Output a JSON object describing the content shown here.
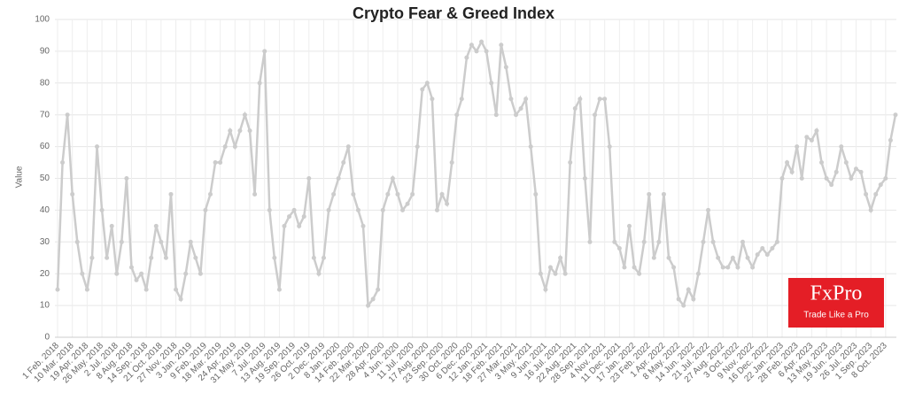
{
  "chart_data": {
    "type": "line",
    "title": "Crypto Fear & Greed Index",
    "y_label": "Value",
    "categories": [
      "1 Feb. 2018",
      null,
      null,
      "10 Mar. 2018",
      null,
      null,
      "19 Apr. 2018",
      null,
      null,
      "26 May. 2018",
      null,
      null,
      "2 Jul. 2018",
      null,
      null,
      "8 Aug. 2018",
      null,
      null,
      "14 Sep. 2018",
      null,
      null,
      "21 Oct. 2018",
      null,
      null,
      "27 Nov. 2018",
      null,
      null,
      "3 Jan. 2019",
      null,
      null,
      "9 Feb. 2019",
      null,
      null,
      "18 Mar. 2019",
      null,
      null,
      "24 Apr. 2019",
      null,
      null,
      "31 May. 2019",
      null,
      null,
      "7 Jul. 2019",
      null,
      null,
      "13 Aug. 2019",
      null,
      null,
      "19 Sep. 2019",
      null,
      null,
      "26 Oct. 2019",
      null,
      null,
      "2 Dec. 2019",
      null,
      null,
      "8 Jan. 2020",
      null,
      null,
      "14 Feb. 2020",
      null,
      null,
      "22 Mar. 2020",
      null,
      null,
      "28 Apr. 2020",
      null,
      null,
      "4 Jun. 2020",
      null,
      null,
      "11 Jul. 2020",
      null,
      null,
      "17 Aug. 2020",
      null,
      null,
      "23 Sep. 2020",
      null,
      null,
      "30 Oct. 2020",
      null,
      null,
      "6 Dec. 2020",
      null,
      null,
      "12 Jan. 2021",
      null,
      null,
      "18 Feb. 2021",
      null,
      null,
      "27 Mar. 2021",
      null,
      null,
      "3 May. 2021",
      null,
      null,
      "9 Jun. 2021",
      null,
      null,
      "16 Jul. 2021",
      null,
      null,
      "22 Aug. 2021",
      null,
      null,
      "28 Sep. 2021",
      null,
      null,
      "4 Nov. 2021",
      null,
      null,
      "11 Dec. 2021",
      null,
      null,
      "17 Jan. 2022",
      null,
      null,
      "23 Feb. 2022",
      null,
      null,
      "1 Apr. 2022",
      null,
      null,
      "8 May. 2022",
      null,
      null,
      "14 Jun. 2022",
      null,
      null,
      "21 Jul. 2022",
      null,
      null,
      "27 Aug. 2022",
      null,
      null,
      "3 Oct. 2022",
      null,
      null,
      "9 Nov. 2022",
      null,
      null,
      "16 Dec. 2022",
      null,
      null,
      "22 Jan. 2023",
      null,
      null,
      "28 Feb. 2023",
      null,
      null,
      "6 Apr. 2023",
      null,
      null,
      "13 May. 2023",
      null,
      null,
      "19 Jun. 2023",
      null,
      null,
      "26 Jul. 2023",
      null,
      null,
      "1 Sep. 2023",
      null,
      null,
      "8 Oct. 2023",
      null,
      null
    ],
    "values": [
      15,
      55,
      70,
      45,
      30,
      20,
      15,
      25,
      60,
      40,
      25,
      35,
      20,
      30,
      50,
      22,
      18,
      20,
      15,
      25,
      35,
      30,
      25,
      45,
      15,
      12,
      20,
      30,
      25,
      20,
      40,
      45,
      55,
      55,
      60,
      65,
      60,
      65,
      70,
      65,
      45,
      80,
      90,
      40,
      25,
      15,
      35,
      38,
      40,
      35,
      38,
      50,
      25,
      20,
      25,
      40,
      45,
      50,
      55,
      60,
      45,
      40,
      35,
      10,
      12,
      15,
      40,
      45,
      50,
      45,
      40,
      42,
      45,
      60,
      78,
      80,
      75,
      40,
      45,
      42,
      55,
      70,
      75,
      88,
      92,
      90,
      93,
      90,
      80,
      70,
      92,
      85,
      75,
      70,
      72,
      75,
      60,
      45,
      20,
      15,
      22,
      20,
      25,
      20,
      55,
      72,
      75,
      50,
      30,
      70,
      75,
      75,
      60,
      30,
      28,
      22,
      35,
      22,
      20,
      30,
      45,
      25,
      30,
      45,
      25,
      22,
      12,
      10,
      15,
      12,
      20,
      30,
      40,
      30,
      25,
      22,
      22,
      25,
      22,
      30,
      25,
      22,
      26,
      28,
      26,
      28,
      30,
      50,
      55,
      52,
      60,
      50,
      63,
      62,
      65,
      55,
      50,
      48,
      52,
      60,
      55,
      50,
      53,
      52,
      45,
      40,
      45,
      48,
      50,
      62,
      70
    ],
    "color": "#cccccc",
    "ylim": [
      0,
      100
    ],
    "yticks": [
      0,
      10,
      20,
      30,
      40,
      50,
      60,
      70,
      80,
      90,
      100
    ],
    "grid": true
  },
  "logo": {
    "name": "FxPro",
    "tagline": "Trade Like a Pro"
  }
}
